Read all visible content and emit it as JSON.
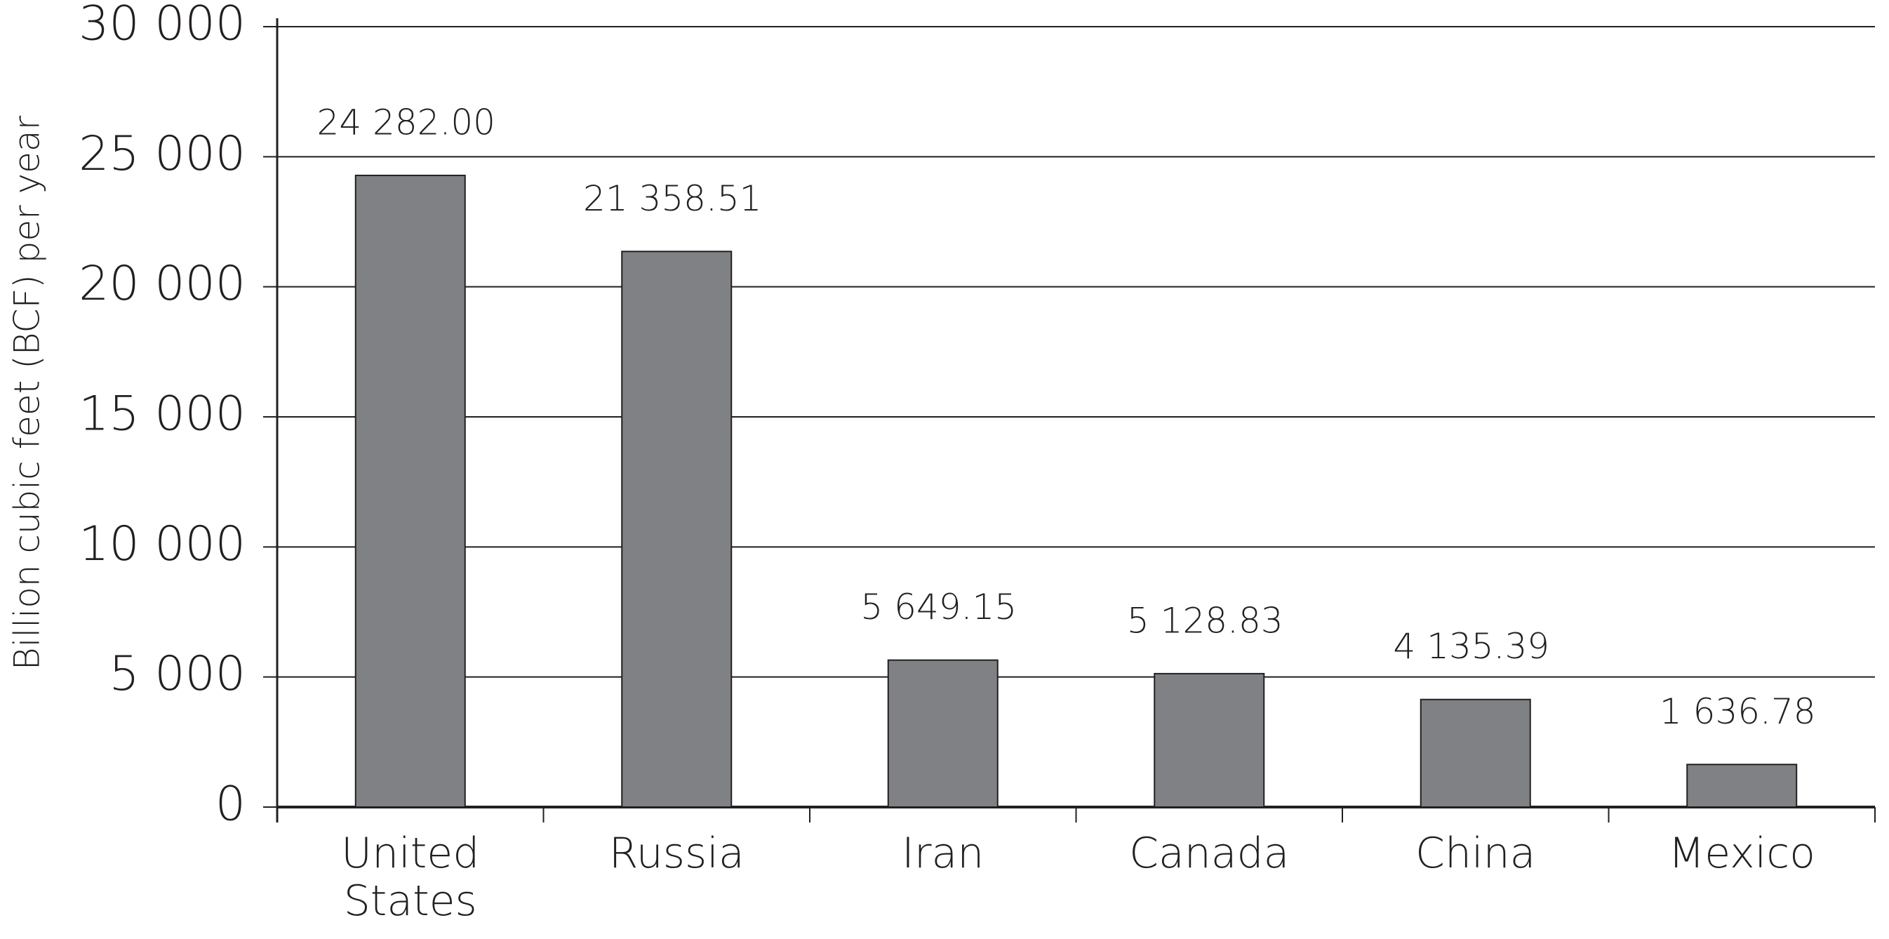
{
  "chart_data": {
    "type": "bar",
    "ylabel": "Billion cubic feet (BCF) per year",
    "categories": [
      "United States",
      "Russia",
      "Iran",
      "Canada",
      "China",
      "Mexico"
    ],
    "values": [
      24282.0,
      21358.51,
      5649.15,
      5128.83,
      4135.39,
      1636.78
    ],
    "value_labels": [
      "24 282.00",
      "21 358.51",
      "5 649.15",
      "5 128.83",
      "4 135.39",
      "1 636.78"
    ],
    "color": "#808184",
    "ylim": [
      0,
      30000
    ],
    "yticks": [
      0,
      {
        "value": 5000,
        "label": "5 000"
      },
      {
        "value": 10000,
        "label": "10 000"
      },
      {
        "value": 15000,
        "label": "15 000"
      },
      {
        "value": 20000,
        "label": "20 000"
      },
      {
        "value": 25000,
        "label": "25 000"
      },
      {
        "value": 30000,
        "label": "30 000"
      }
    ],
    "grid": true
  }
}
